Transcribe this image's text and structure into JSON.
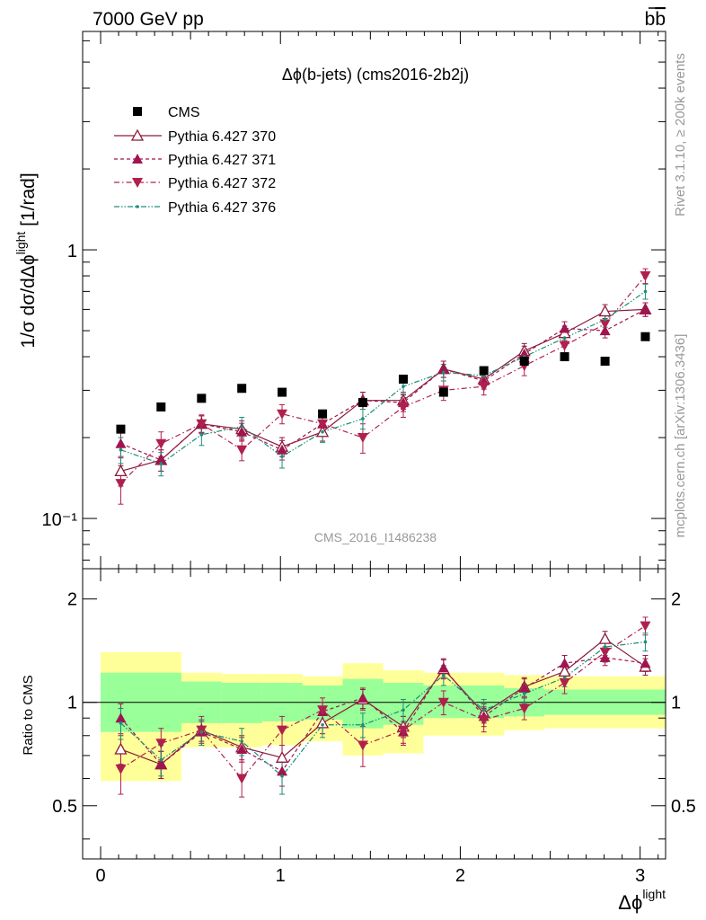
{
  "header": {
    "left": "7000 GeV pp",
    "right": "b",
    "right_bar": "b"
  },
  "side": {
    "top": "Rivet 3.1.10, ≥ 200k events",
    "bottom": "mcplots.cern.ch [arXiv:1306.3436]"
  },
  "watermark": "CMS_2016_I1486238",
  "chart_data": {
    "type": "line",
    "title": "Δϕ(b-jets) (cms2016-2b2j)",
    "ylabel": "1/σ dσ/dΔϕlight [1/rad]",
    "ylabel_parts": [
      "1/σ dσ/dΔϕ",
      "light",
      " [1/rad]"
    ],
    "xlabel": "Δϕlight",
    "xlabel_parts": [
      "Δϕ",
      "light"
    ],
    "ratio_ylabel": "Ratio to CMS",
    "xlim": [
      -0.1,
      3.14159
    ],
    "ylim": [
      0.065,
      6.5
    ],
    "ylog": true,
    "ratio_ylim": [
      0.35,
      2.45
    ],
    "x_ticks": [
      "0",
      "1",
      "2",
      "3"
    ],
    "y_tick_labels": [
      "10⁻¹",
      "1"
    ],
    "ratio_tick_labels": [
      "0.5",
      "1",
      "2"
    ],
    "x": [
      0.112,
      0.336,
      0.561,
      0.785,
      1.009,
      1.234,
      1.458,
      1.683,
      1.907,
      2.131,
      2.356,
      2.58,
      2.805,
      3.029
    ],
    "bin_edges": [
      0,
      0.224,
      0.449,
      0.673,
      0.898,
      1.122,
      1.346,
      1.571,
      1.795,
      2.019,
      2.244,
      2.468,
      2.693,
      2.917,
      3.142
    ],
    "band_edges": [
      0,
      0.449,
      0.673,
      0.898,
      1.122,
      1.346,
      1.571,
      1.795,
      2.244,
      2.468,
      3.142
    ],
    "band_inner": [
      [
        0.82,
        1.22
      ],
      [
        0.87,
        1.15
      ],
      [
        0.87,
        1.14
      ],
      [
        0.88,
        1.14
      ],
      [
        0.89,
        1.12
      ],
      [
        0.84,
        1.17
      ],
      [
        0.86,
        1.14
      ],
      [
        0.9,
        1.12
      ],
      [
        0.91,
        1.1
      ],
      [
        0.92,
        1.09
      ]
    ],
    "band_outer": [
      [
        0.59,
        1.4
      ],
      [
        0.74,
        1.22
      ],
      [
        0.74,
        1.21
      ],
      [
        0.75,
        1.21
      ],
      [
        0.77,
        1.19
      ],
      [
        0.7,
        1.3
      ],
      [
        0.71,
        1.24
      ],
      [
        0.8,
        1.22
      ],
      [
        0.83,
        1.2
      ],
      [
        0.84,
        1.19
      ]
    ],
    "data": {
      "name": "CMS",
      "values": [
        0.215,
        0.26,
        0.28,
        0.305,
        0.295,
        0.245,
        0.27,
        0.33,
        0.295,
        0.355,
        0.385,
        0.4,
        0.385,
        0.475
      ]
    },
    "series": [
      {
        "name": "Pythia 6.427 370",
        "color": "#8b1a3a",
        "style": "solid",
        "marker": "triangle-open",
        "values": [
          0.15,
          0.165,
          0.225,
          0.215,
          0.185,
          0.21,
          0.275,
          0.275,
          0.36,
          0.33,
          0.42,
          0.49,
          0.59,
          0.6
        ],
        "errors": [
          0.018,
          0.015,
          0.016,
          0.016,
          0.015,
          0.016,
          0.02,
          0.02,
          0.025,
          0.022,
          0.028,
          0.03,
          0.035,
          0.035
        ],
        "ratio": [
          0.73,
          0.66,
          0.83,
          0.74,
          0.69,
          0.87,
          1.02,
          0.85,
          1.25,
          0.93,
          1.11,
          1.23,
          1.53,
          1.27
        ],
        "ratio_err": [
          0.07,
          0.06,
          0.06,
          0.06,
          0.06,
          0.06,
          0.07,
          0.06,
          0.08,
          0.06,
          0.07,
          0.07,
          0.08,
          0.07
        ]
      },
      {
        "name": "Pythia 6.427 371",
        "color": "#a0154f",
        "style": "dashed",
        "marker": "triangle-up",
        "values": [
          0.19,
          0.165,
          0.225,
          0.21,
          0.18,
          0.225,
          0.275,
          0.27,
          0.36,
          0.325,
          0.41,
          0.51,
          0.5,
          0.6
        ],
        "errors": [
          0.02,
          0.015,
          0.016,
          0.016,
          0.015,
          0.016,
          0.02,
          0.02,
          0.025,
          0.022,
          0.028,
          0.03,
          0.03,
          0.035
        ],
        "ratio": [
          0.9,
          0.66,
          0.82,
          0.73,
          0.63,
          0.94,
          1.03,
          0.82,
          1.26,
          0.91,
          1.1,
          1.3,
          1.35,
          1.3
        ],
        "ratio_err": [
          0.09,
          0.06,
          0.06,
          0.06,
          0.06,
          0.06,
          0.07,
          0.06,
          0.08,
          0.06,
          0.07,
          0.07,
          0.07,
          0.07
        ]
      },
      {
        "name": "Pythia 6.427 372",
        "color": "#b0204d",
        "style": "dashdot",
        "marker": "triangle-down",
        "values": [
          0.135,
          0.19,
          0.225,
          0.18,
          0.245,
          0.225,
          0.2,
          0.26,
          0.3,
          0.31,
          0.37,
          0.44,
          0.53,
          0.8
        ],
        "errors": [
          0.022,
          0.02,
          0.018,
          0.016,
          0.02,
          0.018,
          0.025,
          0.022,
          0.025,
          0.022,
          0.03,
          0.035,
          0.04,
          0.05
        ],
        "ratio": [
          0.64,
          0.76,
          0.83,
          0.6,
          0.83,
          0.95,
          0.75,
          0.83,
          1.0,
          0.89,
          0.96,
          1.14,
          1.4,
          1.67
        ],
        "ratio_err": [
          0.1,
          0.08,
          0.08,
          0.07,
          0.08,
          0.08,
          0.1,
          0.08,
          0.08,
          0.07,
          0.07,
          0.08,
          0.09,
          0.1
        ]
      },
      {
        "name": "Pythia 6.427 376",
        "color": "#1a8f7a",
        "style": "dashdotdot",
        "marker": "dot",
        "values": [
          0.18,
          0.16,
          0.205,
          0.22,
          0.17,
          0.21,
          0.235,
          0.31,
          0.35,
          0.34,
          0.4,
          0.47,
          0.55,
          0.7
        ],
        "errors": [
          0.02,
          0.016,
          0.018,
          0.018,
          0.016,
          0.018,
          0.02,
          0.022,
          0.025,
          0.024,
          0.028,
          0.03,
          0.035,
          0.045
        ],
        "ratio": [
          0.87,
          0.68,
          0.82,
          0.77,
          0.61,
          0.86,
          0.86,
          0.95,
          1.2,
          0.95,
          1.06,
          1.18,
          1.45,
          1.5
        ],
        "ratio_err": [
          0.09,
          0.07,
          0.07,
          0.07,
          0.07,
          0.07,
          0.07,
          0.07,
          0.08,
          0.07,
          0.07,
          0.07,
          0.08,
          0.09
        ]
      }
    ]
  }
}
